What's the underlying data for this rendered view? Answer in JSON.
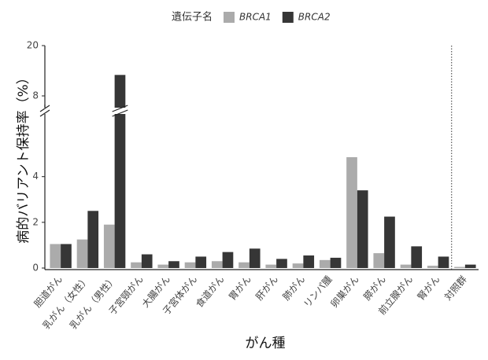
{
  "chart_data": {
    "type": "bar",
    "x_label": "がん種",
    "y_label": "病的バリアント保持率（%）",
    "legend_title": "遺伝子名",
    "legend_position": "top",
    "axis_break": true,
    "ylim": [
      0,
      6.5
    ],
    "ylim_upper": [
      6.5,
      20
    ],
    "yticks": [
      0,
      2,
      4,
      8,
      20
    ],
    "categories": [
      "胆道がん",
      "乳がん（女性）",
      "乳がん（男性）",
      "子宮頸がん",
      "大腸がん",
      "子宮体がん",
      "食道がん",
      "胃がん",
      "肝がん",
      "肺がん",
      "リンパ腫",
      "卵巣がん",
      "膵がん",
      "前立腺がん",
      "腎がん",
      "対照群"
    ],
    "series": [
      {
        "name": "BRCA1",
        "color": "#ababab",
        "values": [
          1.05,
          1.25,
          1.9,
          0.25,
          0.15,
          0.25,
          0.3,
          0.25,
          0.15,
          0.2,
          0.35,
          4.85,
          0.65,
          0.15,
          0.1,
          0.05
        ]
      },
      {
        "name": "BRCA2",
        "color": "#363636",
        "values": [
          1.05,
          2.5,
          13,
          0.6,
          0.3,
          0.5,
          0.7,
          0.85,
          0.4,
          0.55,
          0.45,
          3.4,
          2.25,
          0.95,
          0.5,
          0.15
        ]
      }
    ]
  }
}
